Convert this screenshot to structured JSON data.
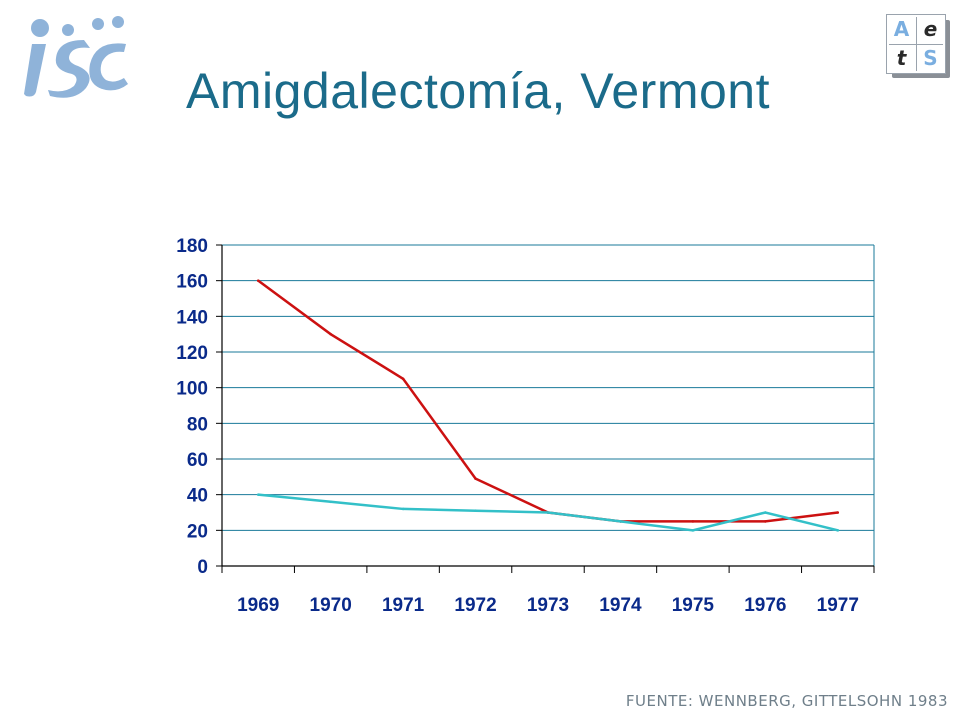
{
  "header": {
    "title": "Amigdalectomía, Vermont"
  },
  "logos": {
    "left": {
      "icon": "isc-logo-icon",
      "color": "#8fb3d9"
    },
    "right": {
      "icon": "aets-logo-icon",
      "cells": [
        "A",
        "e",
        "t",
        "S"
      ]
    }
  },
  "footer": {
    "source": "FUENTE: WENNBERG, GITTELSOHN 1983"
  },
  "chart_data": {
    "type": "line",
    "title": "",
    "xlabel": "",
    "ylabel": "",
    "categories": [
      "1969",
      "1970",
      "1971",
      "1972",
      "1973",
      "1974",
      "1975",
      "1976",
      "1977"
    ],
    "ylim": [
      0,
      180
    ],
    "yticks": [
      0,
      20,
      40,
      60,
      80,
      100,
      120,
      140,
      160,
      180
    ],
    "grid": true,
    "legend": "none",
    "series": [
      {
        "color": "#cc1111",
        "values": [
          160,
          130,
          105,
          49,
          30,
          25,
          25,
          25,
          30
        ]
      },
      {
        "color": "#33c0c8",
        "values": [
          40,
          36,
          32,
          31,
          30,
          25,
          20,
          30,
          20
        ]
      }
    ]
  }
}
